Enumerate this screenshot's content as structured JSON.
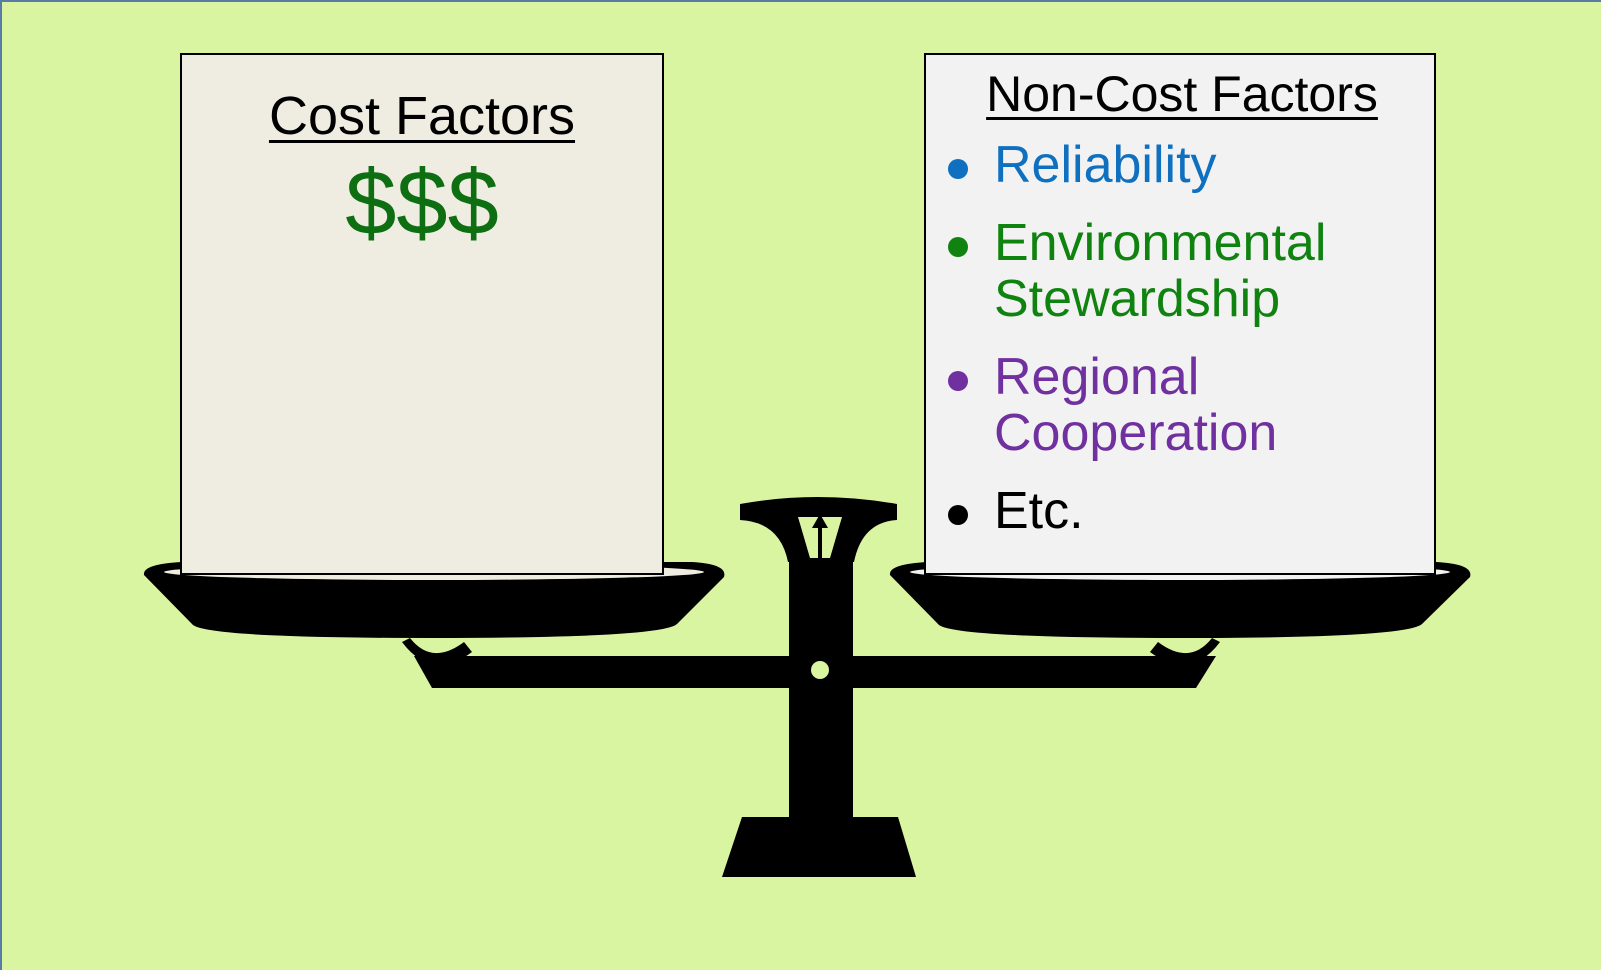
{
  "left": {
    "title": "Cost Factors",
    "symbol": "$$$"
  },
  "right": {
    "title": "Non-Cost Factors",
    "items": [
      "Reliability",
      "Environmental Stewardship",
      "Regional Cooperation",
      "Etc."
    ]
  }
}
